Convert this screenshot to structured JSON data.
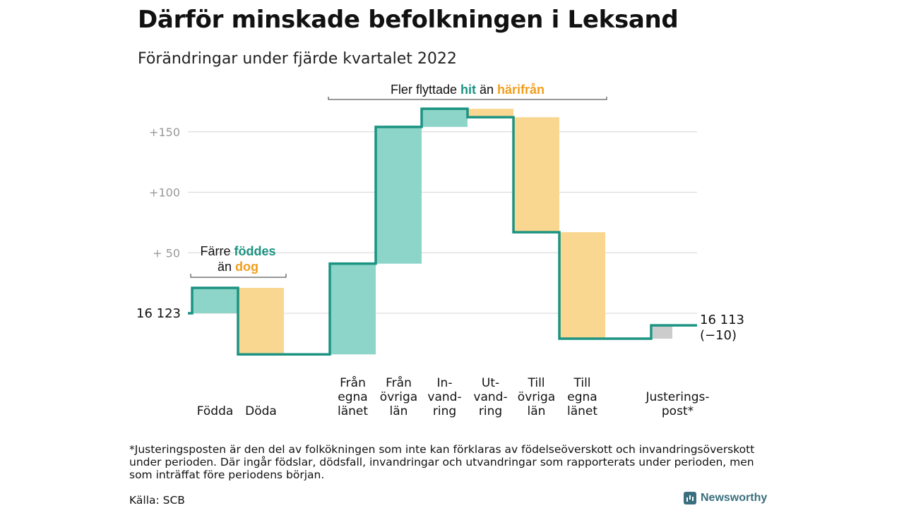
{
  "title": "Därför minskade befolkningen i Leksand",
  "subtitle": "Förändringar under fjärde kvartalet 2022",
  "chart_data": {
    "type": "bar",
    "variant": "waterfall",
    "start_value": 16123,
    "start_label": "16 123",
    "end_value": 16113,
    "end_label": "16 113",
    "end_change_label": "(−10)",
    "y_axis_ticks": [
      {
        "value": 50,
        "label": "+ 50"
      },
      {
        "value": 100,
        "label": "+100"
      },
      {
        "value": 150,
        "label": "+150"
      }
    ],
    "grid": true,
    "steps": [
      {
        "label": [
          "Födda"
        ],
        "change": 21,
        "kind": "in"
      },
      {
        "label": [
          "Döda"
        ],
        "change": -55,
        "kind": "out"
      },
      {
        "label": [
          "Från",
          "egna",
          "länet"
        ],
        "change": 75,
        "kind": "in"
      },
      {
        "label": [
          "Från",
          "övriga",
          "län"
        ],
        "change": 113,
        "kind": "in"
      },
      {
        "label": [
          "In-",
          "vand-",
          "ring"
        ],
        "change": 15,
        "kind": "in"
      },
      {
        "label": [
          "Ut-",
          "vand-",
          "ring"
        ],
        "change": -7,
        "kind": "out"
      },
      {
        "label": [
          "Till",
          "övriga",
          "län"
        ],
        "change": -95,
        "kind": "out"
      },
      {
        "label": [
          "Till",
          "egna",
          "länet"
        ],
        "change": -88,
        "kind": "out"
      },
      {
        "label": [
          "Justerings-",
          "post*"
        ],
        "change": 11,
        "kind": "adjust"
      }
    ],
    "annotations": [
      {
        "lines": [
          [
            {
              "text": "Färre ",
              "style": "plain"
            },
            {
              "text": "föddes",
              "style": "in"
            }
          ],
          [
            {
              "text": "än ",
              "style": "plain"
            },
            {
              "text": "dog",
              "style": "out"
            }
          ]
        ]
      },
      {
        "lines": [
          [
            {
              "text": "Fler flyttade ",
              "style": "plain"
            },
            {
              "text": "hit",
              "style": "in"
            },
            {
              "text": " än ",
              "style": "plain"
            },
            {
              "text": "härifrån",
              "style": "out"
            }
          ]
        ]
      }
    ],
    "colors": {
      "in_fill": "#8dd5c8",
      "out_fill": "#fad790",
      "adjust_fill": "#cccccc",
      "line": "#1b9382",
      "in_text": "#1b9382",
      "out_text": "#f29e1c",
      "grid": "#dddddd",
      "tick_text": "#999999"
    }
  },
  "footnote": "*Justeringsposten är den del av folkökningen som inte kan förklaras av födelseöverskott och invandringsöverskott under perioden. Där ingår födslar, dödsfall, invandringar och utvandringar som rapporterats under perioden, men som inträffat före periodens början.",
  "source": "Källa: SCB",
  "brand": "Newsworthy"
}
